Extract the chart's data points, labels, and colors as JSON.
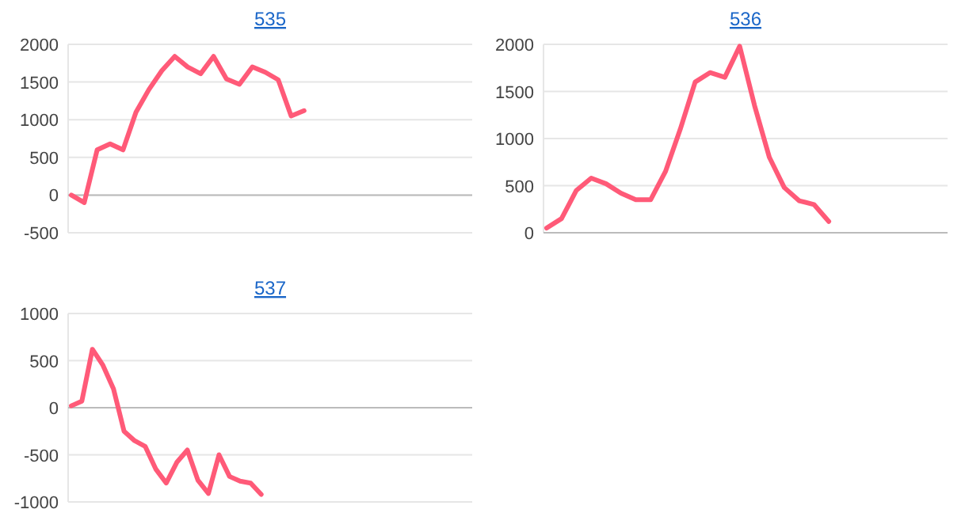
{
  "chart_data": [
    {
      "type": "line",
      "title": "535",
      "categories": [
        null,
        null,
        null,
        null,
        null,
        null,
        null,
        null,
        null,
        null,
        null,
        null,
        null,
        null,
        null,
        null,
        null,
        null,
        null,
        null,
        null,
        null,
        null,
        null,
        null,
        null,
        null,
        null,
        null,
        null,
        null,
        null
      ],
      "series": [
        {
          "color": "#ff5a78",
          "values": [
            0,
            -100,
            600,
            680,
            600,
            1100,
            1400,
            1650,
            1840,
            1700,
            1610,
            1840,
            1540,
            1470,
            1700,
            1630,
            1530,
            1050,
            1120,
            null,
            null,
            null,
            null,
            null,
            null,
            null,
            null,
            null,
            null,
            null,
            null,
            null
          ]
        }
      ],
      "ylim": [
        -500,
        2000
      ],
      "yticks": [
        -500,
        0,
        500,
        1000,
        1500,
        2000
      ],
      "grid": "y",
      "tick_labels": "y",
      "marker": "none",
      "line_style": "solid"
    },
    {
      "type": "line",
      "title": "536",
      "categories": [
        null,
        null,
        null,
        null,
        null,
        null,
        null,
        null,
        null,
        null,
        null,
        null,
        null,
        null,
        null,
        null,
        null,
        null,
        null,
        null,
        null,
        null,
        null,
        null,
        null,
        null,
        null,
        null
      ],
      "series": [
        {
          "color": "#ff5a78",
          "values": [
            50,
            150,
            450,
            580,
            520,
            420,
            350,
            350,
            650,
            1100,
            1600,
            1700,
            1650,
            1980,
            1350,
            800,
            480,
            340,
            300,
            120,
            null,
            null,
            null,
            null,
            null,
            null,
            null,
            null
          ]
        }
      ],
      "ylim": [
        0,
        2000
      ],
      "yticks": [
        0,
        500,
        1000,
        1500,
        2000
      ],
      "grid": "y",
      "tick_labels": "y",
      "marker": "none",
      "line_style": "solid"
    },
    {
      "type": "line",
      "title": "537",
      "categories": [
        null,
        null,
        null,
        null,
        null,
        null,
        null,
        null,
        null,
        null,
        null,
        null,
        null,
        null,
        null,
        null,
        null,
        null,
        null,
        null,
        null,
        null,
        null,
        null,
        null,
        null,
        null,
        null,
        null,
        null,
        null,
        null,
        null,
        null,
        null,
        null,
        null,
        null,
        null
      ],
      "series": [
        {
          "color": "#ff5a78",
          "values": [
            20,
            70,
            620,
            450,
            200,
            -250,
            -350,
            -410,
            -650,
            -800,
            -580,
            -450,
            -770,
            -910,
            -500,
            -730,
            -780,
            -800,
            -920,
            null,
            null,
            null,
            null,
            null,
            null,
            null,
            null,
            null,
            null,
            null,
            null,
            null,
            null,
            null,
            null,
            null,
            null,
            null,
            null
          ]
        }
      ],
      "ylim": [
        -1000,
        1000
      ],
      "yticks": [
        -1000,
        -500,
        0,
        500,
        1000
      ],
      "grid": "y",
      "tick_labels": "y",
      "marker": "none",
      "line_style": "solid"
    }
  ]
}
